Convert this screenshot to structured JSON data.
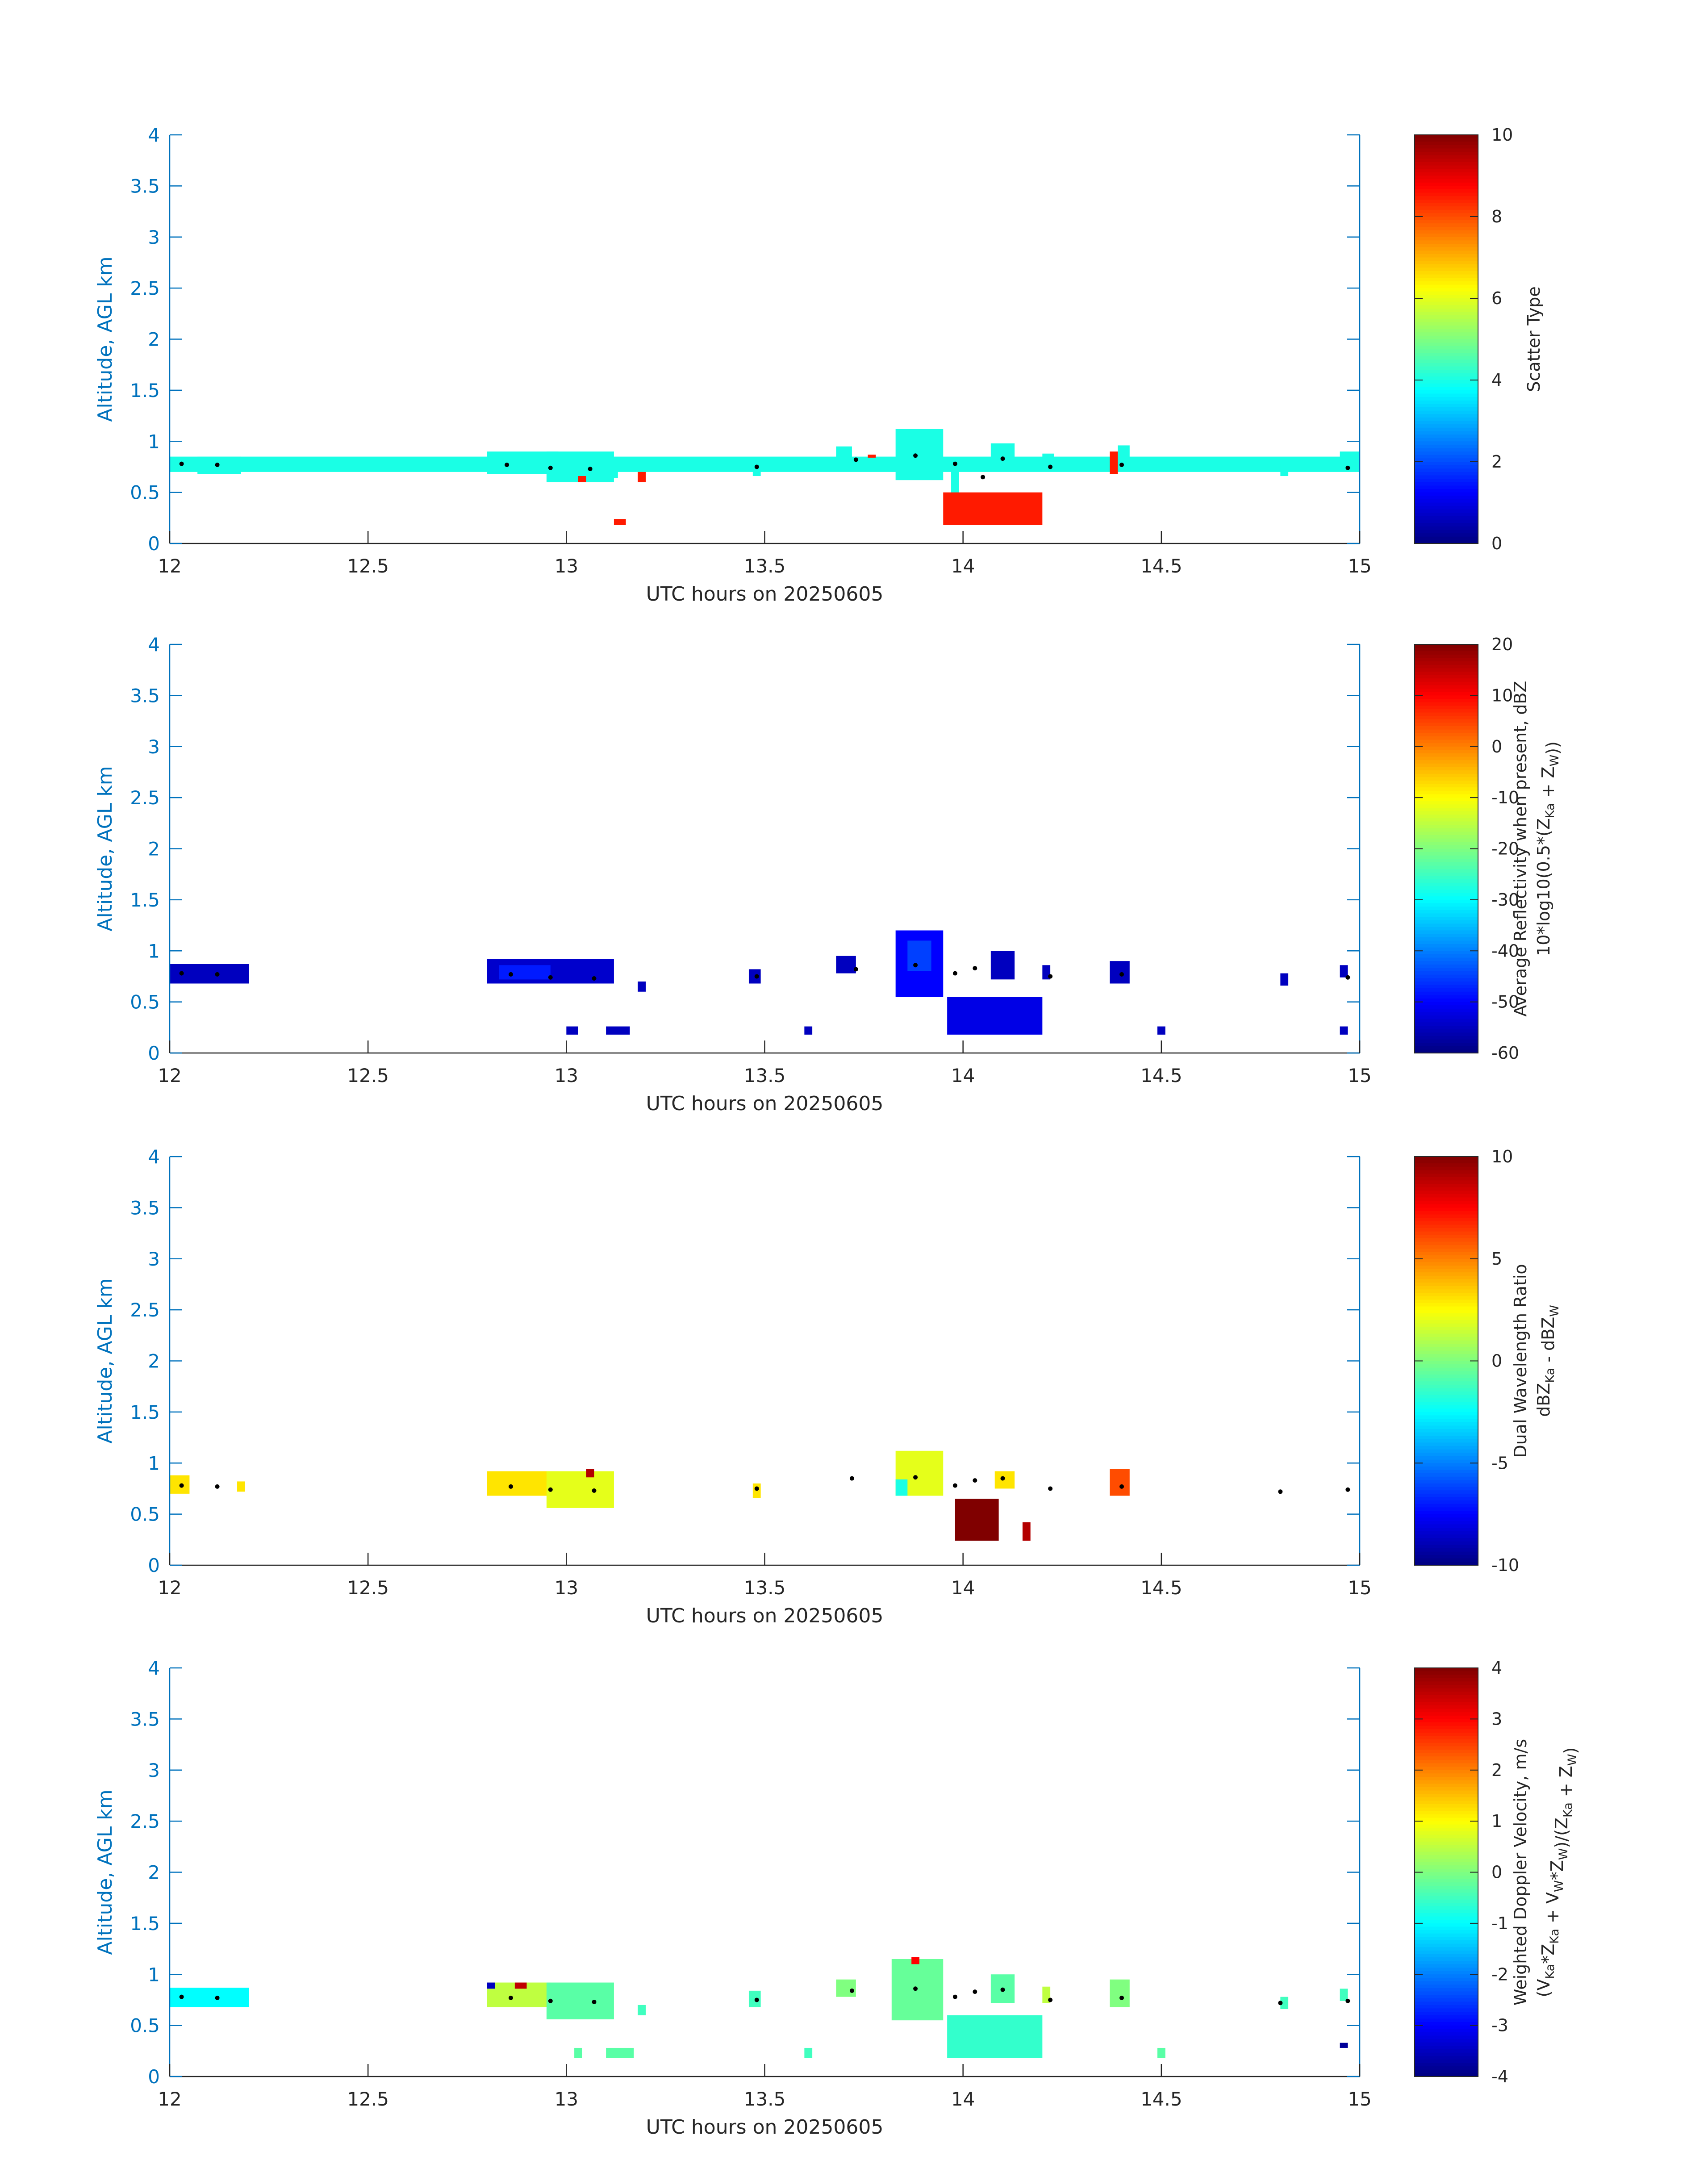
{
  "colors": {
    "yaxis": "#0072BD",
    "xaxis": "#262626",
    "point": "#000000"
  },
  "chart_data": [
    {
      "type": "heatmap",
      "colormap": "jet",
      "xlabel": "UTC hours on 20250605",
      "ylabel": "Altitude, AGL km",
      "xlim": [
        12,
        15
      ],
      "ylim": [
        0,
        4
      ],
      "xticks": [
        "12",
        "12.5",
        "13",
        "13.5",
        "14",
        "14.5",
        "15"
      ],
      "yticks": [
        "0",
        "0.5",
        "1",
        "1.5",
        "2",
        "2.5",
        "3",
        "3.5",
        "4"
      ],
      "colorbar": {
        "lines": [
          "Scatter Type"
        ],
        "clim": [
          0,
          10
        ],
        "ticks": [
          "0",
          "2",
          "4",
          "6",
          "8",
          "10"
        ]
      },
      "cells": [
        [
          12.0,
          15.0,
          0.7,
          0.85,
          4
        ],
        [
          12.07,
          12.18,
          0.68,
          0.85,
          4
        ],
        [
          12.8,
          12.98,
          0.68,
          0.9,
          4
        ],
        [
          12.95,
          13.12,
          0.6,
          0.9,
          4
        ],
        [
          13.1,
          13.13,
          0.64,
          0.74,
          4
        ],
        [
          13.03,
          13.05,
          0.6,
          0.66,
          8.5
        ],
        [
          13.18,
          13.2,
          0.6,
          0.7,
          8.5
        ],
        [
          13.12,
          13.15,
          0.18,
          0.24,
          8.5
        ],
        [
          13.47,
          13.49,
          0.66,
          0.84,
          4
        ],
        [
          13.68,
          13.72,
          0.78,
          0.95,
          4
        ],
        [
          13.76,
          13.78,
          0.84,
          0.87,
          8.5
        ],
        [
          13.83,
          13.95,
          0.62,
          1.12,
          4
        ],
        [
          13.97,
          13.99,
          0.2,
          0.8,
          4
        ],
        [
          13.95,
          14.2,
          0.18,
          0.5,
          8.5
        ],
        [
          14.07,
          14.13,
          0.76,
          0.98,
          4
        ],
        [
          14.2,
          14.23,
          0.74,
          0.88,
          4
        ],
        [
          14.37,
          14.39,
          0.68,
          0.9,
          8.5
        ],
        [
          14.39,
          14.42,
          0.76,
          0.96,
          4
        ],
        [
          14.8,
          14.82,
          0.66,
          0.78,
          4
        ],
        [
          14.95,
          15.0,
          0.74,
          0.9,
          4
        ]
      ],
      "points": [
        [
          12.03,
          0.78
        ],
        [
          12.12,
          0.77
        ],
        [
          12.85,
          0.77
        ],
        [
          12.96,
          0.74
        ],
        [
          13.06,
          0.73
        ],
        [
          13.48,
          0.75
        ],
        [
          13.73,
          0.82
        ],
        [
          13.88,
          0.86
        ],
        [
          13.98,
          0.78
        ],
        [
          14.05,
          0.65
        ],
        [
          14.1,
          0.83
        ],
        [
          14.22,
          0.75
        ],
        [
          14.4,
          0.77
        ],
        [
          14.97,
          0.74
        ]
      ]
    },
    {
      "type": "heatmap",
      "colormap": "jet",
      "xlabel": "UTC hours on 20250605",
      "ylabel": "Altitude, AGL km",
      "xlim": [
        12,
        15
      ],
      "ylim": [
        0,
        4
      ],
      "xticks": [
        "12",
        "12.5",
        "13",
        "13.5",
        "14",
        "14.5",
        "15"
      ],
      "yticks": [
        "0",
        "0.5",
        "1",
        "1.5",
        "2",
        "2.5",
        "3",
        "3.5",
        "4"
      ],
      "colorbar": {
        "lines": [
          "Average Reflectivity when present, dBZ",
          "10*log10(0.5*(Z_Ka + Z_W))"
        ],
        "clim": [
          -60,
          20
        ],
        "ticks": [
          "-60",
          "-50",
          "-40",
          "-30",
          "-20",
          "-10",
          "0",
          "10",
          "20"
        ]
      },
      "cells": [
        [
          12.0,
          12.2,
          0.68,
          0.87,
          -55
        ],
        [
          12.8,
          13.12,
          0.68,
          0.92,
          -54
        ],
        [
          12.83,
          12.96,
          0.72,
          0.86,
          -48
        ],
        [
          13.0,
          13.03,
          0.18,
          0.26,
          -55
        ],
        [
          13.1,
          13.16,
          0.18,
          0.26,
          -55
        ],
        [
          13.18,
          13.2,
          0.6,
          0.7,
          -55
        ],
        [
          13.46,
          13.49,
          0.68,
          0.82,
          -55
        ],
        [
          13.6,
          13.62,
          0.18,
          0.26,
          -55
        ],
        [
          13.68,
          13.73,
          0.78,
          0.95,
          -55
        ],
        [
          13.83,
          13.95,
          0.55,
          1.2,
          -50
        ],
        [
          13.86,
          13.92,
          0.8,
          1.1,
          -45
        ],
        [
          13.96,
          14.2,
          0.18,
          0.55,
          -52
        ],
        [
          14.07,
          14.13,
          0.72,
          1.0,
          -55
        ],
        [
          14.2,
          14.22,
          0.72,
          0.86,
          -55
        ],
        [
          14.37,
          14.42,
          0.68,
          0.9,
          -55
        ],
        [
          14.49,
          14.51,
          0.18,
          0.26,
          -55
        ],
        [
          14.8,
          14.82,
          0.66,
          0.78,
          -55
        ],
        [
          14.95,
          14.97,
          0.18,
          0.26,
          -55
        ],
        [
          14.95,
          14.97,
          0.74,
          0.86,
          -55
        ]
      ],
      "points": [
        [
          12.03,
          0.78
        ],
        [
          12.12,
          0.77
        ],
        [
          12.86,
          0.77
        ],
        [
          12.96,
          0.74
        ],
        [
          13.07,
          0.73
        ],
        [
          13.48,
          0.75
        ],
        [
          13.73,
          0.82
        ],
        [
          13.88,
          0.86
        ],
        [
          13.98,
          0.78
        ],
        [
          14.03,
          0.83
        ],
        [
          14.22,
          0.75
        ],
        [
          14.4,
          0.77
        ],
        [
          14.97,
          0.74
        ]
      ]
    },
    {
      "type": "heatmap",
      "colormap": "jet",
      "xlabel": "UTC hours on 20250605",
      "ylabel": "Altitude, AGL km",
      "xlim": [
        12,
        15
      ],
      "ylim": [
        0,
        4
      ],
      "xticks": [
        "12",
        "12.5",
        "13",
        "13.5",
        "14",
        "14.5",
        "15"
      ],
      "yticks": [
        "0",
        "0.5",
        "1",
        "1.5",
        "2",
        "2.5",
        "3",
        "3.5",
        "4"
      ],
      "colorbar": {
        "lines": [
          "Dual Wavelength Ratio",
          "dBZ_Ka - dBZ_W"
        ],
        "clim": [
          -10,
          10
        ],
        "ticks": [
          "-10",
          "-5",
          "0",
          "5",
          "10"
        ]
      },
      "cells": [
        [
          12.0,
          12.05,
          0.7,
          0.88,
          3
        ],
        [
          12.17,
          12.19,
          0.72,
          0.82,
          3
        ],
        [
          12.8,
          12.98,
          0.68,
          0.92,
          3
        ],
        [
          12.95,
          13.12,
          0.56,
          0.92,
          2
        ],
        [
          13.05,
          13.07,
          0.86,
          0.94,
          9
        ],
        [
          13.47,
          13.49,
          0.66,
          0.8,
          3
        ],
        [
          13.83,
          13.95,
          0.68,
          1.12,
          2
        ],
        [
          13.83,
          13.86,
          0.68,
          0.84,
          -2
        ],
        [
          13.98,
          14.09,
          0.24,
          0.65,
          10
        ],
        [
          14.08,
          14.13,
          0.75,
          0.92,
          3
        ],
        [
          14.15,
          14.17,
          0.24,
          0.42,
          9
        ],
        [
          14.37,
          14.42,
          0.68,
          0.94,
          6
        ]
      ],
      "points": [
        [
          12.03,
          0.78
        ],
        [
          12.12,
          0.77
        ],
        [
          12.86,
          0.77
        ],
        [
          12.96,
          0.74
        ],
        [
          13.07,
          0.73
        ],
        [
          13.48,
          0.75
        ],
        [
          13.72,
          0.85
        ],
        [
          13.88,
          0.86
        ],
        [
          13.98,
          0.78
        ],
        [
          14.03,
          0.83
        ],
        [
          14.1,
          0.85
        ],
        [
          14.22,
          0.75
        ],
        [
          14.4,
          0.77
        ],
        [
          14.8,
          0.72
        ],
        [
          14.97,
          0.74
        ]
      ]
    },
    {
      "type": "heatmap",
      "colormap": "jet",
      "xlabel": "UTC hours on 20250605",
      "ylabel": "Altitude, AGL km",
      "xlim": [
        12,
        15
      ],
      "ylim": [
        0,
        4
      ],
      "xticks": [
        "12",
        "12.5",
        "13",
        "13.5",
        "14",
        "14.5",
        "15"
      ],
      "yticks": [
        "0",
        "0.5",
        "1",
        "1.5",
        "2",
        "2.5",
        "3",
        "3.5",
        "4"
      ],
      "colorbar": {
        "lines": [
          "Weighted Doppler Velocity, m/s",
          "(V_Ka*Z_Ka + V_W*Z_W)/(Z_Ka + Z_W)"
        ],
        "clim": [
          -4,
          4
        ],
        "ticks": [
          "-4",
          "-3",
          "-2",
          "-1",
          "0",
          "1",
          "2",
          "3",
          "4"
        ]
      },
      "cells": [
        [
          12.0,
          12.2,
          0.68,
          0.87,
          -1
        ],
        [
          12.8,
          12.96,
          0.68,
          0.92,
          0.5
        ],
        [
          12.95,
          13.12,
          0.56,
          0.92,
          -0.3
        ],
        [
          12.8,
          12.82,
          0.86,
          0.92,
          -3.5
        ],
        [
          12.87,
          12.9,
          0.86,
          0.92,
          3.5
        ],
        [
          13.02,
          13.04,
          0.18,
          0.28,
          -0.3
        ],
        [
          13.1,
          13.17,
          0.18,
          0.28,
          -0.3
        ],
        [
          13.18,
          13.2,
          0.6,
          0.7,
          -0.5
        ],
        [
          13.46,
          13.49,
          0.68,
          0.84,
          -0.5
        ],
        [
          13.6,
          13.62,
          0.18,
          0.28,
          -0.5
        ],
        [
          13.68,
          13.73,
          0.78,
          0.95,
          0
        ],
        [
          13.82,
          13.95,
          0.55,
          1.15,
          -0.2
        ],
        [
          13.87,
          13.89,
          1.1,
          1.17,
          3
        ],
        [
          13.96,
          14.2,
          0.18,
          0.6,
          -0.6
        ],
        [
          14.07,
          14.13,
          0.72,
          1.0,
          -0.3
        ],
        [
          14.2,
          14.22,
          0.72,
          0.88,
          0.5
        ],
        [
          14.37,
          14.42,
          0.68,
          0.95,
          0
        ],
        [
          14.49,
          14.51,
          0.18,
          0.28,
          -0.3
        ],
        [
          14.8,
          14.82,
          0.66,
          0.78,
          -0.5
        ],
        [
          14.95,
          14.97,
          0.74,
          0.86,
          -0.5
        ],
        [
          14.95,
          14.97,
          0.28,
          0.33,
          -3.8
        ]
      ],
      "points": [
        [
          12.03,
          0.78
        ],
        [
          12.12,
          0.77
        ],
        [
          12.86,
          0.77
        ],
        [
          12.96,
          0.74
        ],
        [
          13.07,
          0.73
        ],
        [
          13.48,
          0.75
        ],
        [
          13.72,
          0.84
        ],
        [
          13.88,
          0.86
        ],
        [
          13.98,
          0.78
        ],
        [
          14.03,
          0.83
        ],
        [
          14.1,
          0.85
        ],
        [
          14.22,
          0.75
        ],
        [
          14.4,
          0.77
        ],
        [
          14.8,
          0.72
        ],
        [
          14.97,
          0.74
        ]
      ]
    }
  ]
}
